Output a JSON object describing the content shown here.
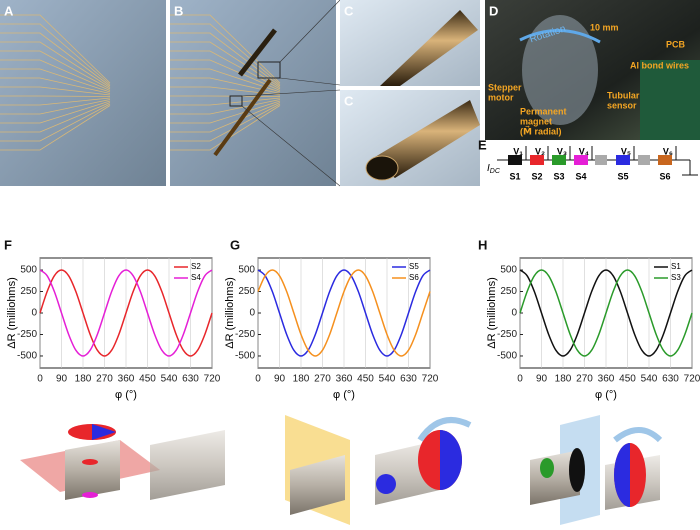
{
  "panel_labels": [
    "A",
    "B",
    "C",
    "C",
    "D",
    "E",
    "F",
    "G",
    "H"
  ],
  "annotations": {
    "rotation": "Rotation",
    "scale": "10 mm",
    "stepper_motor": [
      "Stepper",
      "motor"
    ],
    "pcb": "PCB",
    "bond_wires": "Al bond wires",
    "tubular_sensor": [
      "Tubular",
      "sensor"
    ],
    "magnet": [
      "Permanent",
      "magnet",
      "(M⃗ radial)"
    ]
  },
  "circuit": {
    "current": {
      "symbol": "I",
      "subscript": "DC"
    },
    "voltages": [
      "V₁",
      "V₂",
      "V₃",
      "V₄",
      "V₅",
      "V₆"
    ],
    "sensors": [
      "S1",
      "S2",
      "S3",
      "S4",
      "S5",
      "S6"
    ]
  },
  "chart_data": [
    {
      "type": "line",
      "xlabel": "φ (°)",
      "ylabel": "ΔR (milliohms)",
      "x": [
        0,
        30,
        60,
        90,
        120,
        150,
        180,
        210,
        240,
        270,
        300,
        330,
        360,
        390,
        420,
        450,
        480,
        510,
        540,
        570,
        600,
        630,
        660,
        690,
        720
      ],
      "series": [
        {
          "name": "S2",
          "color": "#e8262b",
          "values": [
            0,
            250,
            433,
            500,
            433,
            250,
            0,
            -250,
            -433,
            -500,
            -433,
            -250,
            0,
            250,
            433,
            500,
            433,
            250,
            0,
            -250,
            -433,
            -500,
            -433,
            -250,
            0
          ]
        },
        {
          "name": "S4",
          "color": "#e51fd6",
          "values": [
            500,
            433,
            250,
            0,
            -250,
            -433,
            -500,
            -433,
            -250,
            0,
            250,
            433,
            500,
            433,
            250,
            0,
            -250,
            -433,
            -500,
            -433,
            -250,
            0,
            250,
            433,
            500
          ]
        }
      ],
      "xlim": [
        0,
        720
      ],
      "ylim": [
        -640,
        640
      ],
      "xticks": [
        0,
        90,
        180,
        270,
        360,
        450,
        540,
        630,
        720
      ],
      "yticks": [
        -500,
        -250,
        0,
        250,
        500
      ],
      "grid": "x",
      "legend": "upper right"
    },
    {
      "type": "line",
      "xlabel": "φ (°)",
      "ylabel": "ΔR (milliohms)",
      "x": [
        0,
        30,
        60,
        90,
        120,
        150,
        180,
        210,
        240,
        270,
        300,
        330,
        360,
        390,
        420,
        450,
        480,
        510,
        540,
        570,
        600,
        630,
        660,
        690,
        720
      ],
      "series": [
        {
          "name": "S5",
          "color": "#2b2be0",
          "values": [
            500,
            433,
            250,
            0,
            -250,
            -433,
            -500,
            -433,
            -250,
            0,
            250,
            433,
            500,
            433,
            250,
            0,
            -250,
            -433,
            -500,
            -433,
            -250,
            0,
            250,
            433,
            500
          ]
        },
        {
          "name": "S6",
          "color": "#f5901e",
          "values": [
            250,
            433,
            500,
            433,
            250,
            0,
            -250,
            -433,
            -500,
            -433,
            -250,
            0,
            250,
            433,
            500,
            433,
            250,
            0,
            -250,
            -433,
            -500,
            -433,
            -250,
            0,
            250
          ]
        }
      ],
      "xlim": [
        0,
        720
      ],
      "ylim": [
        -640,
        640
      ],
      "xticks": [
        0,
        90,
        180,
        270,
        360,
        450,
        540,
        630,
        720
      ],
      "yticks": [
        -500,
        -250,
        0,
        250,
        500
      ],
      "grid": "x",
      "legend": "upper right"
    },
    {
      "type": "line",
      "xlabel": "φ (°)",
      "ylabel": "ΔR (milliohms)",
      "x": [
        0,
        30,
        60,
        90,
        120,
        150,
        180,
        210,
        240,
        270,
        300,
        330,
        360,
        390,
        420,
        450,
        480,
        510,
        540,
        570,
        600,
        630,
        660,
        690,
        720
      ],
      "series": [
        {
          "name": "S1",
          "color": "#111111",
          "values": [
            500,
            433,
            250,
            0,
            -250,
            -433,
            -500,
            -433,
            -250,
            0,
            250,
            433,
            500,
            433,
            250,
            0,
            -250,
            -433,
            -500,
            -433,
            -250,
            0,
            250,
            433,
            500
          ]
        },
        {
          "name": "S3",
          "color": "#2a9a2a",
          "values": [
            0,
            250,
            433,
            500,
            433,
            250,
            0,
            -250,
            -433,
            -500,
            -433,
            -250,
            0,
            250,
            433,
            500,
            433,
            250,
            0,
            -250,
            -433,
            -500,
            -433,
            -250,
            0
          ]
        }
      ],
      "xlim": [
        0,
        720
      ],
      "ylim": [
        -640,
        640
      ],
      "xticks": [
        0,
        90,
        180,
        270,
        360,
        450,
        540,
        630,
        720
      ],
      "yticks": [
        -500,
        -250,
        0,
        250,
        500
      ],
      "grid": "x",
      "legend": "upper right"
    }
  ]
}
